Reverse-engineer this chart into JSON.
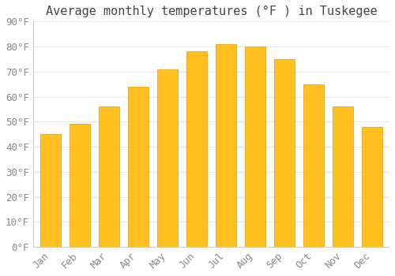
{
  "title": "Average monthly temperatures (°F ) in Tuskegee",
  "months": [
    "Jan",
    "Feb",
    "Mar",
    "Apr",
    "May",
    "Jun",
    "Jul",
    "Aug",
    "Sep",
    "Oct",
    "Nov",
    "Dec"
  ],
  "values": [
    45,
    49,
    56,
    64,
    71,
    78,
    81,
    80,
    75,
    65,
    56,
    48
  ],
  "bar_color": "#FFC020",
  "bar_edge_color": "#E8950A",
  "ylim": [
    0,
    90
  ],
  "yticks": [
    0,
    10,
    20,
    30,
    40,
    50,
    60,
    70,
    80,
    90
  ],
  "background_color": "#ffffff",
  "grid_color": "#e8e8e8",
  "title_fontsize": 11,
  "tick_fontsize": 9,
  "font_family": "monospace"
}
